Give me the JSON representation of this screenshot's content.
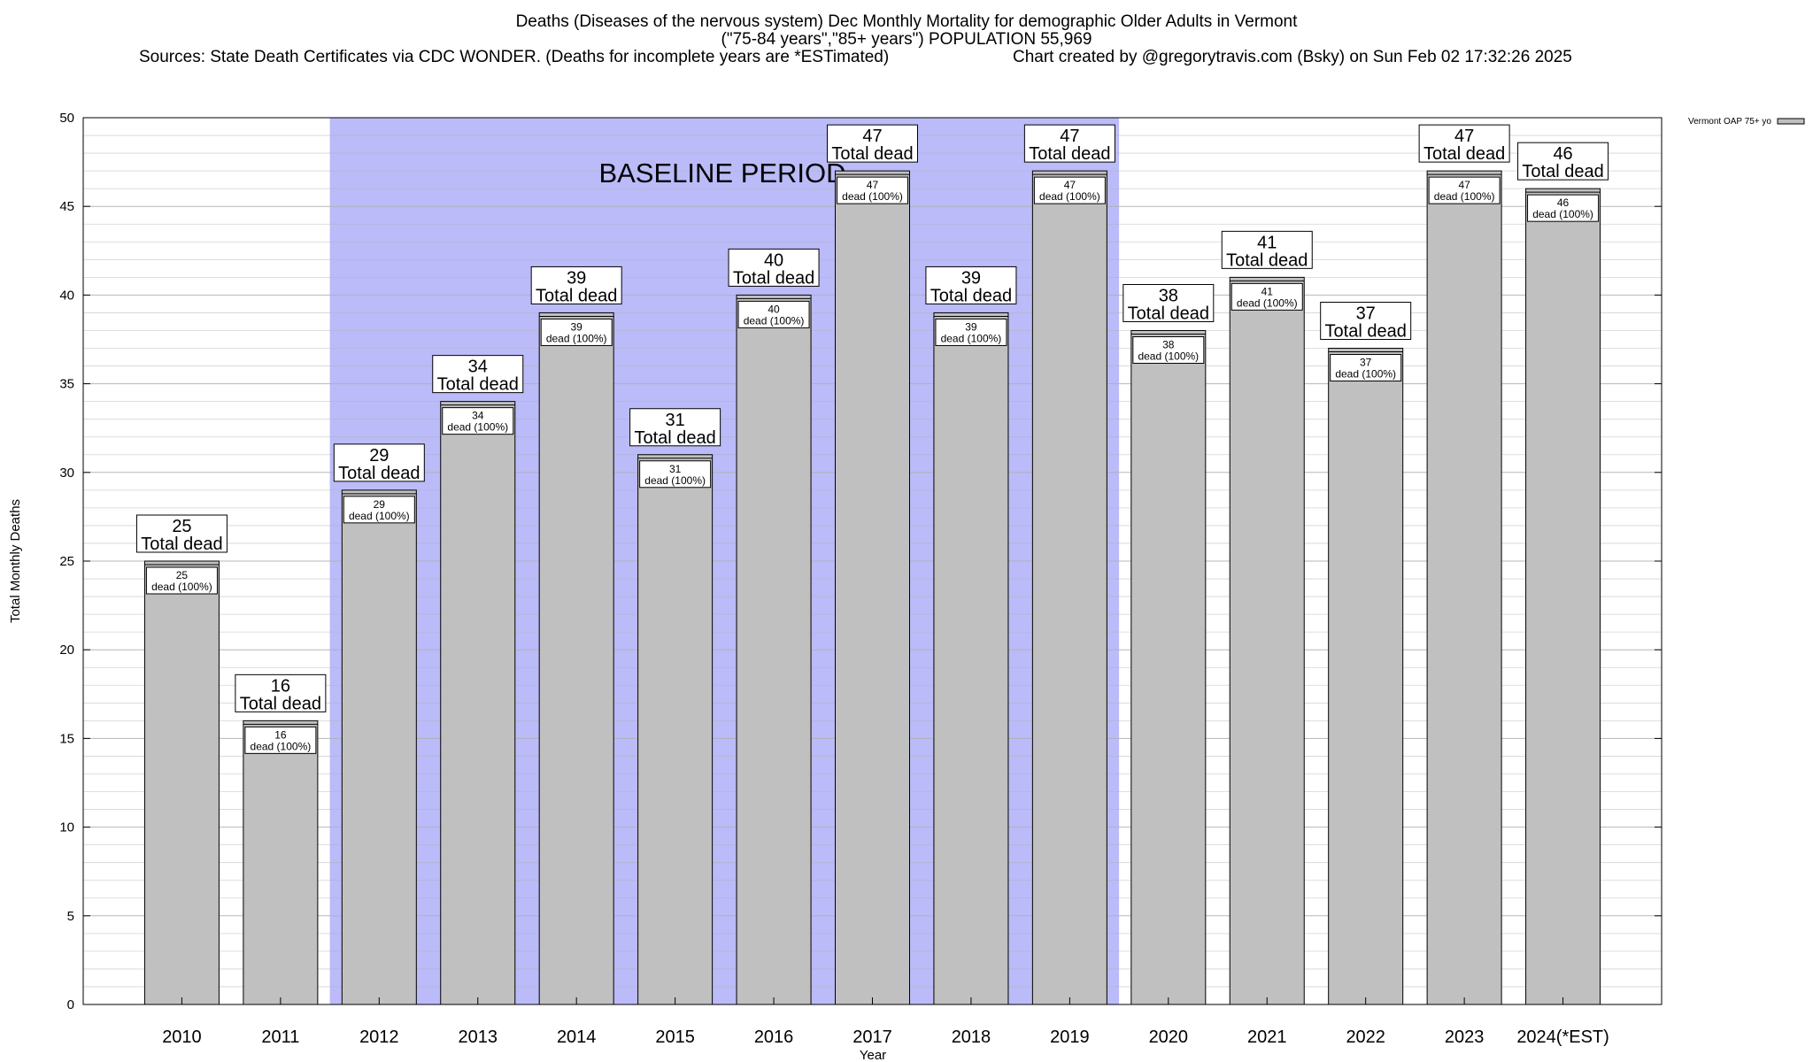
{
  "chart_data": {
    "type": "bar",
    "title": "Deaths (Diseases of the nervous system) Dec Monthly Mortality for demographic Older Adults in Vermont",
    "subtitle": "(\"75-84 years\",\"85+ years\") POPULATION 55,969",
    "sources": "Sources: State Death Certificates via CDC WONDER. (Deaths for incomplete years are *ESTimated)",
    "credit": "Chart created by @gregorytravis.com (Bsky) on Sun Feb 02 17:32:26 2025",
    "xlabel": "Year",
    "ylabel": "Total Monthly Deaths",
    "ylim": [
      0,
      50
    ],
    "yticks": [
      0,
      5,
      10,
      15,
      20,
      25,
      30,
      35,
      40,
      45,
      50
    ],
    "categories": [
      "2010",
      "2011",
      "2012",
      "2013",
      "2014",
      "2015",
      "2016",
      "2017",
      "2018",
      "2019",
      "2020",
      "2021",
      "2022",
      "2023",
      "2024(*EST)"
    ],
    "series": [
      {
        "name": "Vermont OAP 75+ yo",
        "values": [
          25,
          16,
          29,
          34,
          39,
          31,
          40,
          47,
          39,
          47,
          38,
          41,
          37,
          47,
          46
        ]
      }
    ],
    "total_label": "Total dead",
    "inner_label": "dead (100%)",
    "baseline": {
      "label": "BASELINE PERIOD",
      "from": "2012",
      "to": "2019"
    },
    "grid": true,
    "legend_position": "top-right",
    "colors": {
      "bar": "#c0c0c0",
      "baseline": "#bbbbf9",
      "grid": "#b0b0b0"
    }
  }
}
